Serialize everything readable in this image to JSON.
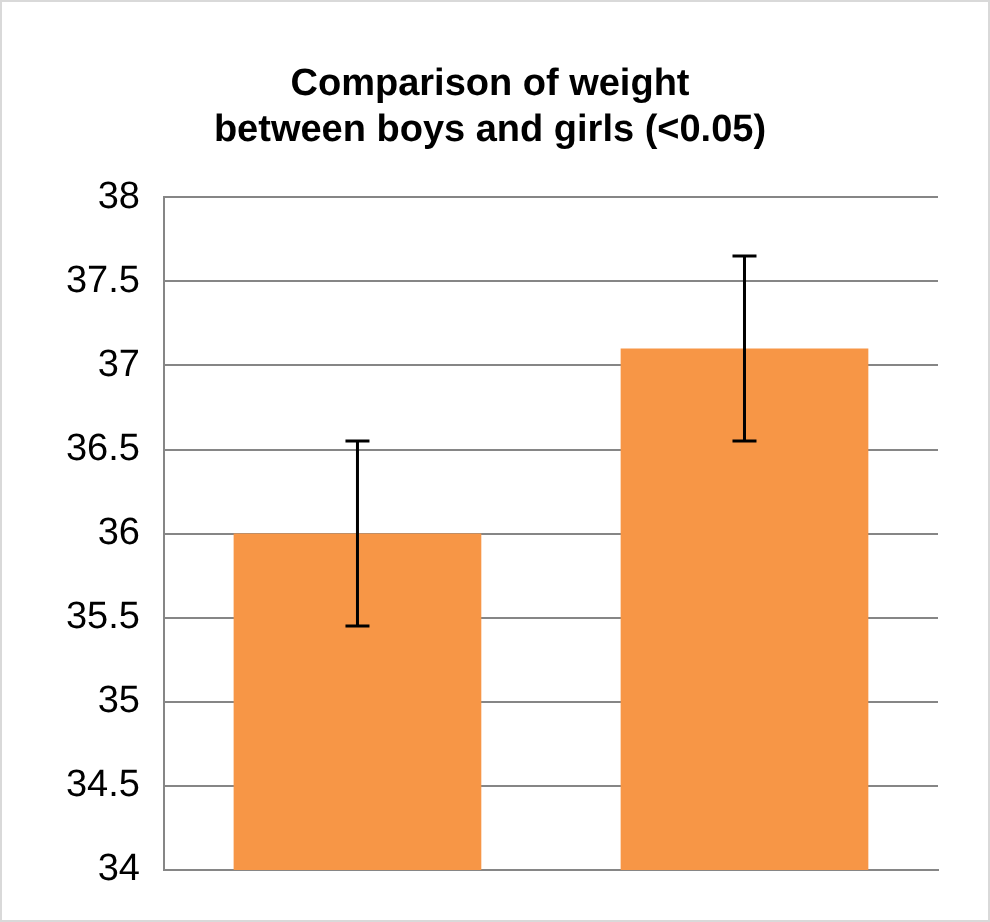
{
  "chart_data": {
    "type": "bar",
    "title": "Comparison of weight\nbetween boys and girls (<0.05)",
    "categories": [
      null,
      null
    ],
    "values": [
      36,
      37.1
    ],
    "errors": [
      0.55,
      0.55
    ],
    "color": "#f79646",
    "ylim": [
      34,
      38
    ],
    "yticks": [
      34,
      34.5,
      35,
      35.5,
      36,
      36.5,
      37,
      37.5,
      38
    ],
    "grid": "y"
  }
}
